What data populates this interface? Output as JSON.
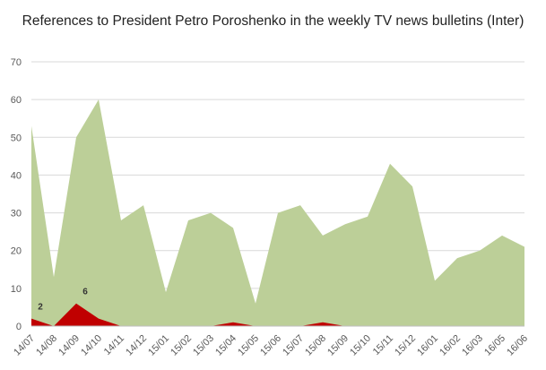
{
  "chart_data": {
    "type": "area",
    "title": "References to President Petro Poroshenko in the weekly TV news bulletins (Inter)",
    "xlabel": "",
    "ylabel": "",
    "ylim": [
      0,
      70
    ],
    "yticks": [
      0,
      10,
      20,
      30,
      40,
      50,
      60,
      70
    ],
    "grid": true,
    "legend": "none",
    "categories": [
      "14/07",
      "14/08",
      "14/09",
      "14/10",
      "14/11",
      "14/12",
      "15/01",
      "15/02",
      "15/03",
      "15/04",
      "15/05",
      "15/06",
      "15/07",
      "15/08",
      "15/09",
      "15/10",
      "15/11",
      "15/12",
      "16/01",
      "16/02",
      "16/03",
      "16/05",
      "16/06"
    ],
    "series": [
      {
        "color": "#bccf98",
        "values": [
          53,
          13,
          50,
          60,
          28,
          32,
          9,
          28,
          30,
          26,
          6,
          30,
          32,
          24,
          27,
          29,
          43,
          37,
          12,
          18,
          20,
          24,
          21
        ]
      },
      {
        "color": "#c00000",
        "values": [
          2,
          0,
          6,
          2,
          0,
          0,
          0,
          0,
          0,
          1,
          0,
          0,
          0,
          1,
          0,
          0,
          0,
          0,
          0,
          0,
          0,
          0,
          0
        ]
      }
    ],
    "data_labels": [
      {
        "category": "14/07",
        "value": 2,
        "text": "2"
      },
      {
        "category": "14/09",
        "value": 6,
        "text": "6"
      }
    ]
  }
}
